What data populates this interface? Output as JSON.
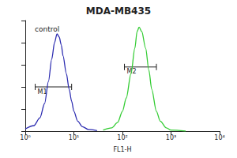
{
  "chart_data": {
    "type": "line",
    "title": "MDA-MB435",
    "x_label": "FL1-H",
    "log": "x",
    "grid": false,
    "tick_labels": "x",
    "xlim": [
      1,
      10000
    ],
    "xticks": [
      {
        "value": 1,
        "label": "10⁰"
      },
      {
        "value": 10,
        "label": "10¹"
      },
      {
        "value": 100,
        "label": "10²"
      },
      {
        "value": 1000,
        "label": "10³"
      },
      {
        "value": 10000,
        "label": "10⁴"
      }
    ],
    "ylim": [
      0,
      100
    ],
    "yticks": [
      0,
      20,
      40,
      60,
      80,
      100
    ],
    "annotations": [
      "control"
    ],
    "series": [
      {
        "color": "#2b2bb0",
        "x": [
          1,
          1.5,
          2,
          2.5,
          3,
          3.5,
          4,
          4.5,
          5,
          5.5,
          6,
          7,
          8,
          9,
          10,
          12,
          15,
          20,
          30
        ],
        "values": [
          2,
          5,
          12,
          25,
          45,
          65,
          80,
          88,
          85,
          78,
          68,
          52,
          38,
          27,
          18,
          9,
          4,
          1.5,
          0.5
        ]
      },
      {
        "color": "#33cc33",
        "x": [
          40,
          60,
          80,
          100,
          120,
          150,
          180,
          200,
          220,
          250,
          300,
          350,
          400,
          500,
          600,
          800,
          1000,
          2000
        ],
        "values": [
          1,
          3,
          8,
          18,
          30,
          52,
          75,
          90,
          94,
          90,
          75,
          55,
          38,
          18,
          9,
          3,
          1,
          0
        ]
      }
    ],
    "markers": [
      {
        "label": "M1",
        "range": [
          1.6,
          9
        ],
        "y": 40
      },
      {
        "label": "M2",
        "range": [
          110,
          500
        ],
        "y": 58
      }
    ]
  }
}
